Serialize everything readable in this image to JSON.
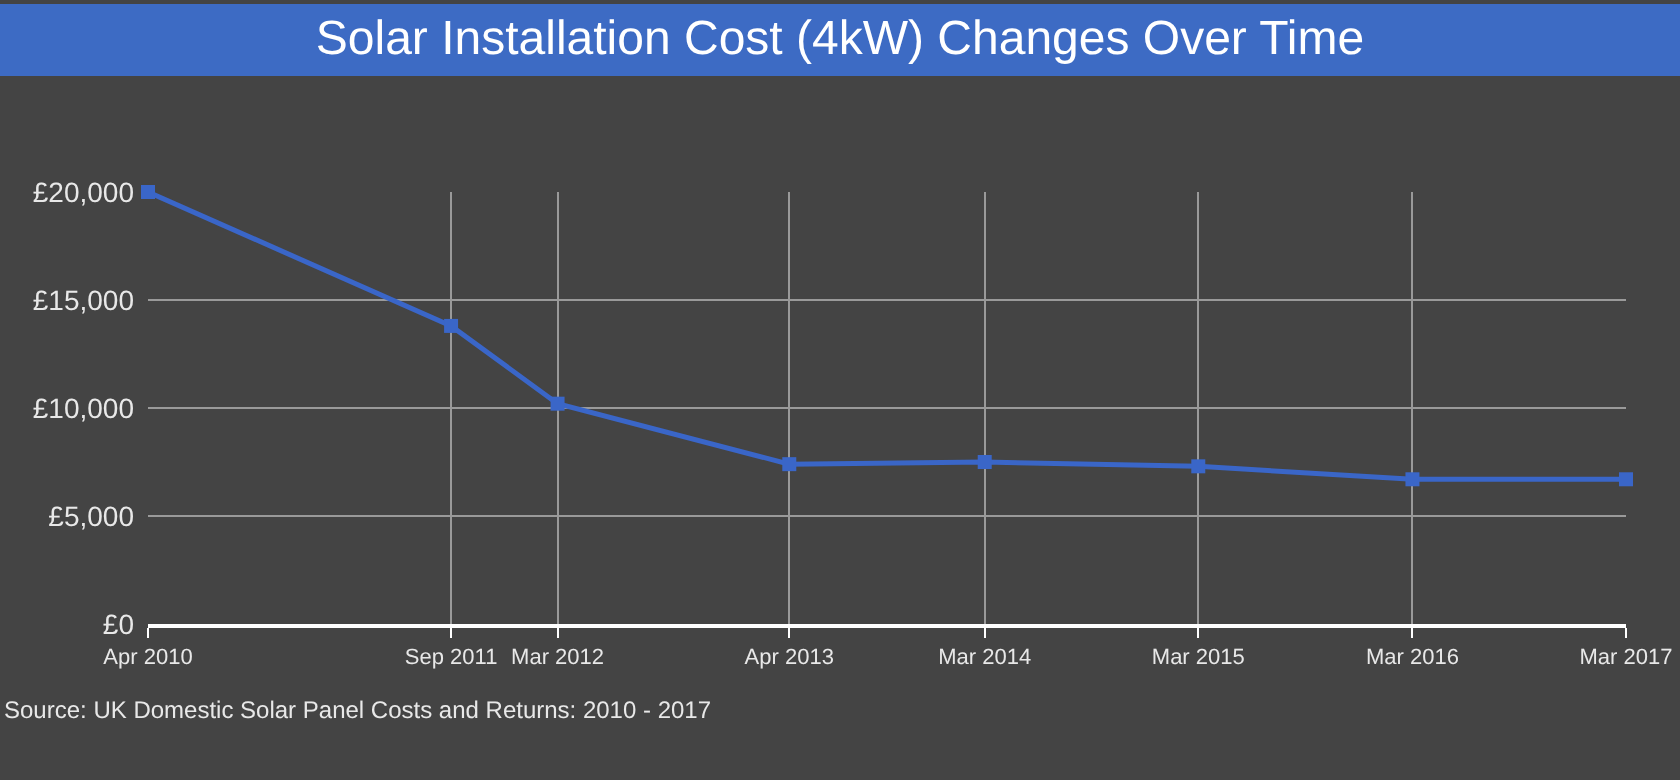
{
  "chart_data": {
    "type": "line",
    "title": "Solar Installation Cost (4kW) Changes Over Time",
    "x": [
      "2010-04",
      "2011-09",
      "2012-03",
      "2013-04",
      "2014-03",
      "2015-03",
      "2016-03",
      "2017-03"
    ],
    "series": [
      {
        "color": "#3a66c8",
        "values": [
          20000,
          13800,
          10200,
          7400,
          7500,
          7300,
          6700,
          6700
        ]
      }
    ],
    "xlim": [
      "2010-04",
      "2017-03"
    ],
    "xticks": [
      {
        "value": "2010-04",
        "label": "Apr 2010"
      },
      {
        "value": "2011-09",
        "label": "Sep 2011"
      },
      {
        "value": "2012-03",
        "label": "Mar 2012"
      },
      {
        "value": "2013-04",
        "label": "Apr 2013"
      },
      {
        "value": "2014-03",
        "label": "Mar 2014"
      },
      {
        "value": "2015-03",
        "label": "Mar 2015"
      },
      {
        "value": "2016-03",
        "label": "Mar 2016"
      },
      {
        "value": "2017-03",
        "label": "Mar 2017"
      }
    ],
    "ylim": [
      0,
      20000
    ],
    "yticks": [
      {
        "value": 0,
        "label": "£0"
      },
      {
        "value": 5000,
        "label": "£5,000"
      },
      {
        "value": 10000,
        "label": "£10,000"
      },
      {
        "value": 15000,
        "label": "£15,000"
      },
      {
        "value": 20000,
        "label": "£20,000"
      }
    ],
    "grid": true,
    "marker": "square",
    "line_style": "solid",
    "annotations": [
      "Source: UK Domestic Solar Panel Costs and Returns: 2010 - 2017"
    ]
  }
}
